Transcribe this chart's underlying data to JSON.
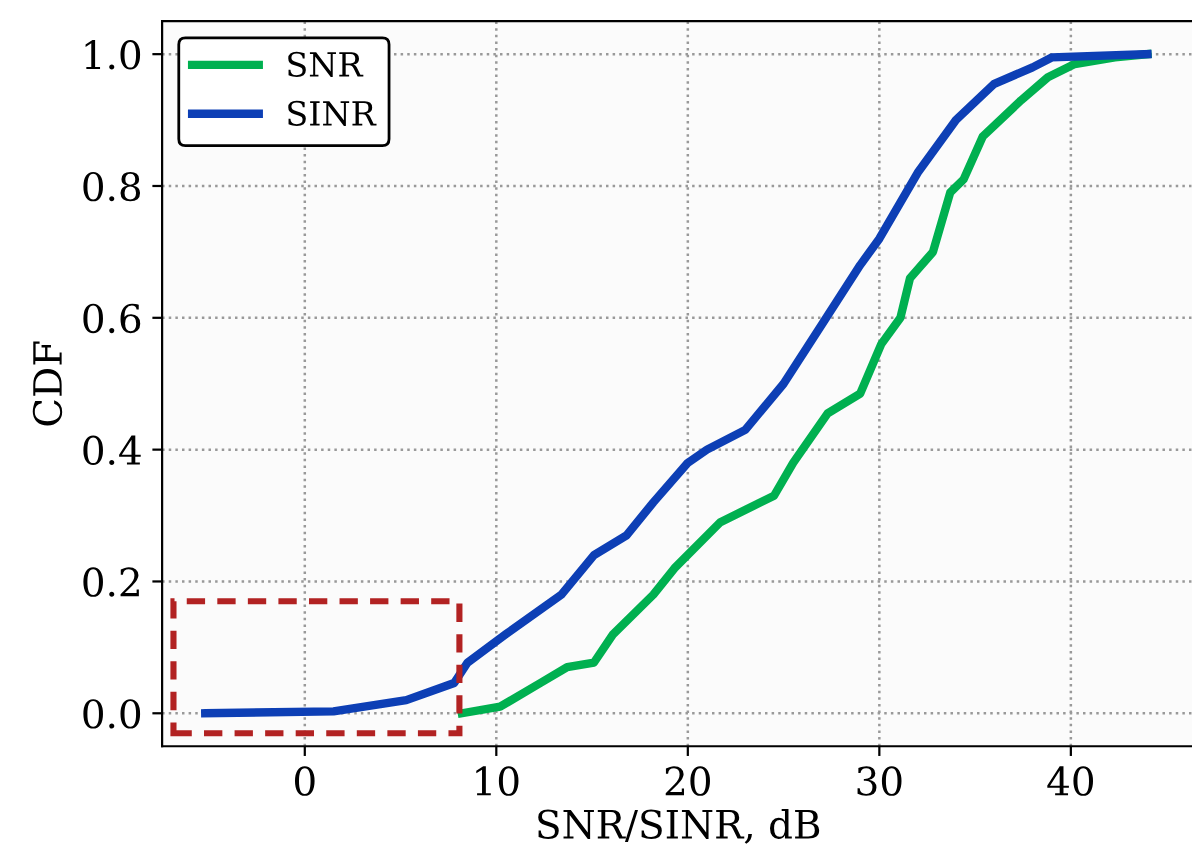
{
  "chart_data": {
    "type": "line",
    "xlabel": "SNR/SINR, dB",
    "ylabel": "CDF",
    "xlim": [
      -7.45,
      46.45
    ],
    "ylim": [
      -0.05,
      1.05
    ],
    "xticks": [
      0,
      10,
      20,
      30,
      40
    ],
    "yticks": [
      {
        "value": 0,
        "label": "0.0"
      },
      {
        "value": 0.2,
        "label": "0.2"
      },
      {
        "value": 0.4,
        "label": "0.4"
      },
      {
        "value": 0.6,
        "label": "0.6"
      },
      {
        "value": 0.8,
        "label": "0.8"
      },
      {
        "value": 1.0,
        "label": "1.0"
      }
    ],
    "grid": true,
    "legend": "top left",
    "line_style": "solid",
    "marker": "none",
    "series": [
      {
        "name": "SNR",
        "color": "#00b050",
        "x": [
          8.2,
          10.2,
          12.3,
          13.7,
          15.1,
          16.1,
          18.2,
          19.3,
          21.7,
          24.5,
          25.5,
          27.3,
          29,
          30.1,
          31.1,
          31.6,
          32.8,
          33.7,
          34.4,
          35.4,
          37.4,
          38.8,
          40.2,
          42.3,
          44
        ],
        "values": [
          0,
          0.01,
          0.046,
          0.07,
          0.077,
          0.12,
          0.18,
          0.22,
          0.29,
          0.33,
          0.38,
          0.455,
          0.485,
          0.56,
          0.6,
          0.66,
          0.7,
          0.79,
          0.81,
          0.875,
          0.93,
          0.965,
          0.985,
          0.995,
          1.0
        ]
      },
      {
        "name": "SINR",
        "color": "#0d3fb5",
        "x": [
          -5.2,
          1.5,
          5.3,
          7.8,
          8.5,
          10.5,
          13.4,
          15.1,
          16.8,
          18.2,
          20,
          21,
          23,
          25,
          27,
          29,
          30,
          32,
          34,
          36,
          38,
          39,
          44
        ],
        "values": [
          0,
          0.003,
          0.02,
          0.046,
          0.077,
          0.12,
          0.18,
          0.24,
          0.27,
          0.32,
          0.38,
          0.4,
          0.43,
          0.5,
          0.59,
          0.68,
          0.72,
          0.82,
          0.9,
          0.955,
          0.98,
          0.995,
          1.0
        ]
      }
    ]
  }
}
